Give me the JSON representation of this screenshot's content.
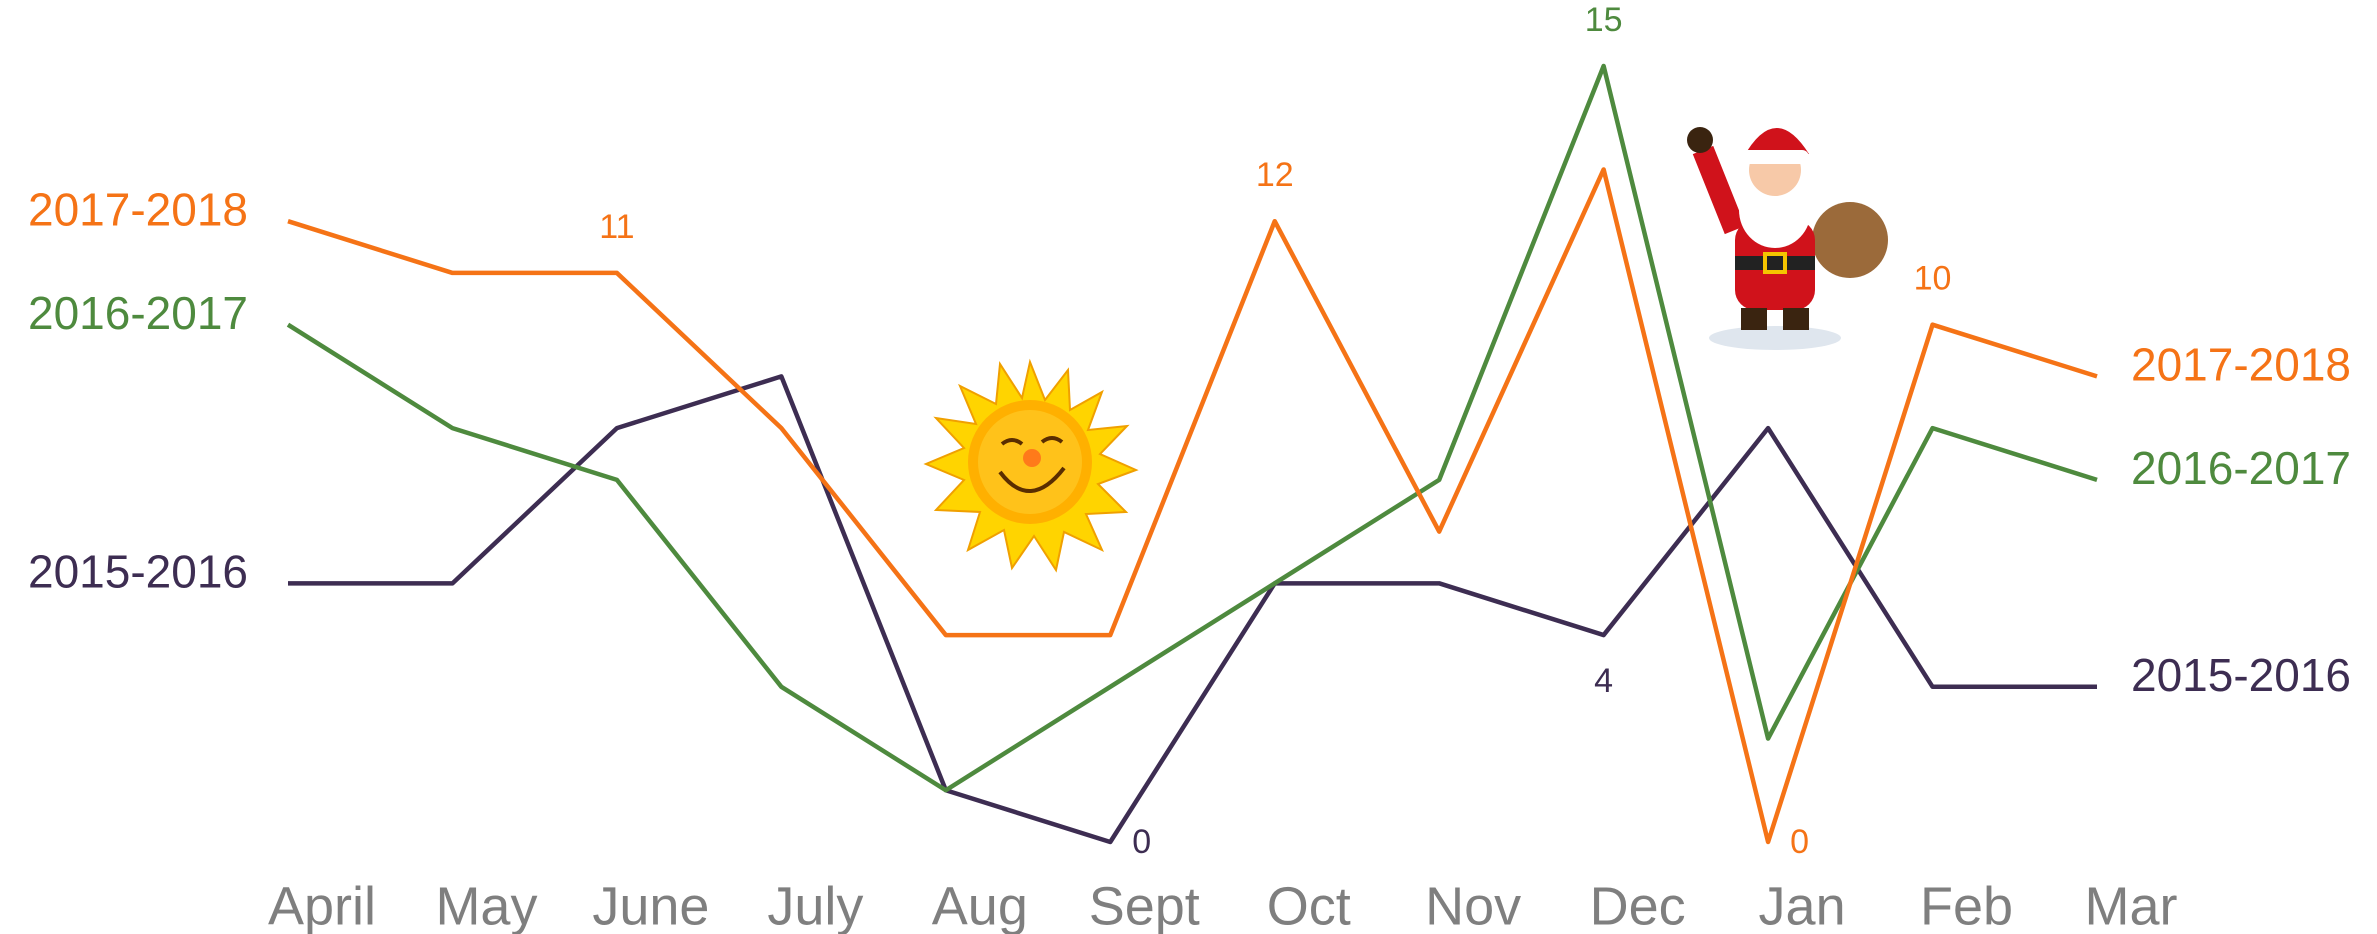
{
  "chart_data": {
    "type": "line",
    "categories": [
      "April",
      "May",
      "June",
      "July",
      "Aug",
      "Sept",
      "Oct",
      "Nov",
      "Dec",
      "Jan",
      "Feb",
      "Mar"
    ],
    "ylim": [
      0,
      15
    ],
    "series": [
      {
        "name": "2015-2016",
        "color": "#3d2d52",
        "values": [
          5,
          5,
          8,
          9,
          1,
          0,
          5,
          5,
          4,
          8,
          3,
          3
        ],
        "value_labels": [
          null,
          null,
          null,
          null,
          null,
          "0",
          null,
          null,
          "4",
          null,
          null,
          null
        ]
      },
      {
        "name": "2016-2017",
        "color": "#4e8a3e",
        "values": [
          10,
          8,
          7,
          3,
          1,
          3,
          5,
          7,
          15,
          2,
          8,
          7
        ],
        "value_labels": [
          null,
          null,
          null,
          null,
          null,
          null,
          null,
          null,
          "15",
          null,
          null,
          null
        ]
      },
      {
        "name": "2017-2018",
        "color": "#f57316",
        "values": [
          12,
          11,
          11,
          8,
          4,
          4,
          12,
          6,
          13,
          0,
          10,
          9
        ],
        "value_labels": [
          null,
          null,
          "11",
          null,
          null,
          null,
          "12",
          null,
          null,
          "0",
          "10",
          null
        ]
      }
    ]
  }
}
